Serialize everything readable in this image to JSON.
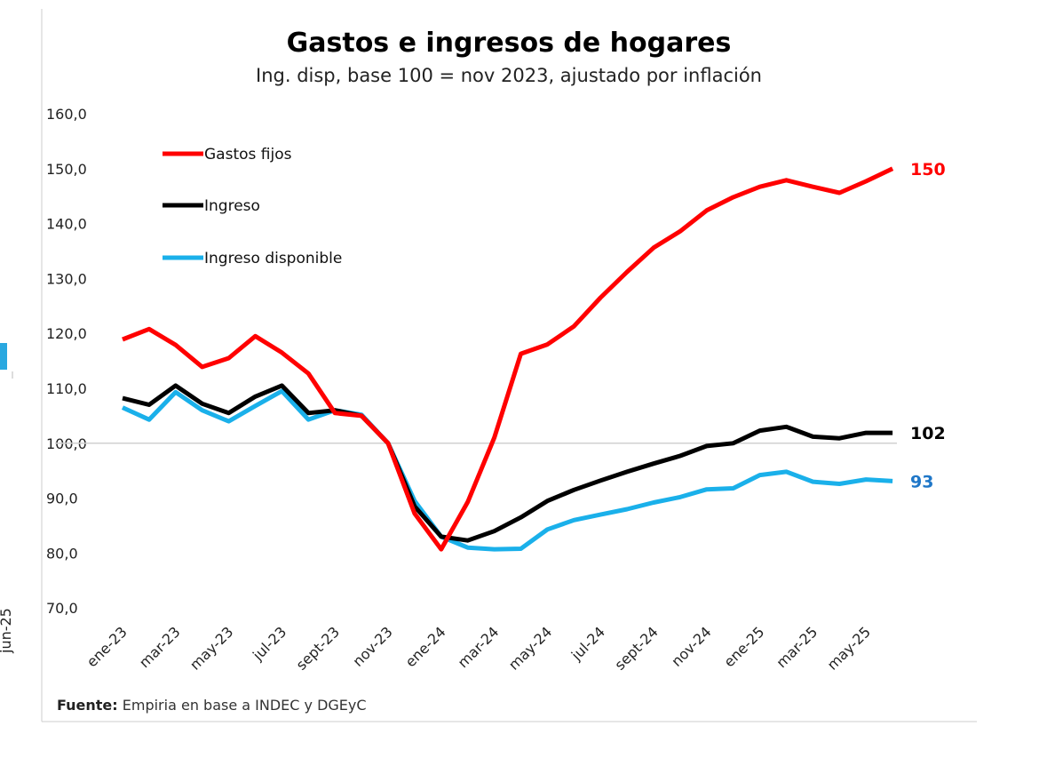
{
  "side_fragment": {
    "label": "jun-25",
    "accent": "#29a8e0"
  },
  "chart_data": {
    "type": "line",
    "title": "Gastos e ingresos de hogares",
    "subtitle": "Ing. disp, base 100 = nov 2023, ajustado por inflación",
    "xlabel": "",
    "ylabel": "",
    "ylim": [
      70,
      160
    ],
    "yticks": [
      "70,0",
      "80,0",
      "90,0",
      "100,0",
      "110,0",
      "120,0",
      "130,0",
      "140,0",
      "150,0",
      "160,0"
    ],
    "ytick_values": [
      70,
      80,
      90,
      100,
      110,
      120,
      130,
      140,
      150,
      160
    ],
    "x": [
      "ene-23",
      "feb-23",
      "mar-23",
      "abr-23",
      "may-23",
      "jun-23",
      "jul-23",
      "ago-23",
      "sept-23",
      "oct-23",
      "nov-23",
      "dic-23",
      "ene-24",
      "feb-24",
      "mar-24",
      "abr-24",
      "may-24",
      "jun-24",
      "jul-24",
      "ago-24",
      "sept-24",
      "oct-24",
      "nov-24",
      "dic-24",
      "ene-25",
      "feb-25",
      "mar-25",
      "abr-25",
      "may-25",
      "jun-25"
    ],
    "xtick_labels": [
      "ene-23",
      "mar-23",
      "may-23",
      "jul-23",
      "sept-23",
      "nov-23",
      "ene-24",
      "mar-24",
      "may-24",
      "jul-24",
      "sept-24",
      "nov-24",
      "ene-25",
      "mar-25",
      "may-25"
    ],
    "reference_line": 100,
    "legend_position": "top-left",
    "series": [
      {
        "name": "Gastos fijos",
        "color": "#ff0000",
        "end_label": "150",
        "values": [
          118.9,
          120.8,
          117.9,
          113.9,
          115.5,
          119.5,
          116.5,
          112.7,
          105.5,
          105,
          100,
          87.2,
          80.7,
          89.3,
          101,
          116.3,
          118,
          121.3,
          126.5,
          131.2,
          135.6,
          138.6,
          142.4,
          144.8,
          146.7,
          147.9,
          146.7,
          145.6,
          147.7,
          150
        ]
      },
      {
        "name": "Ingreso",
        "color": "#000000",
        "end_label": "102",
        "values": [
          108.2,
          107,
          110.5,
          107.2,
          105.5,
          108.5,
          110.5,
          105.5,
          106,
          105,
          100,
          88.5,
          83,
          82.3,
          84,
          86.5,
          89.5,
          91.5,
          93.2,
          94.8,
          96.3,
          97.7,
          99.5,
          100,
          102.3,
          103,
          101.2,
          100.9,
          101.9,
          101.9
        ]
      },
      {
        "name": "Ingreso disponible",
        "color": "#1ab0ea",
        "end_label": "93",
        "end_label_color": "#1f77c8",
        "values": [
          106.5,
          104.3,
          109.3,
          106,
          104,
          106.8,
          109.5,
          104.3,
          106,
          105.2,
          100,
          89.5,
          83,
          81,
          80.7,
          80.8,
          84.3,
          86,
          87,
          88,
          89.2,
          90.2,
          91.6,
          91.8,
          94.2,
          94.8,
          93,
          92.6,
          93.4,
          93.1
        ]
      }
    ],
    "source_label": "Fuente:",
    "source_text": " Empiria en base a INDEC y DGEyC"
  }
}
